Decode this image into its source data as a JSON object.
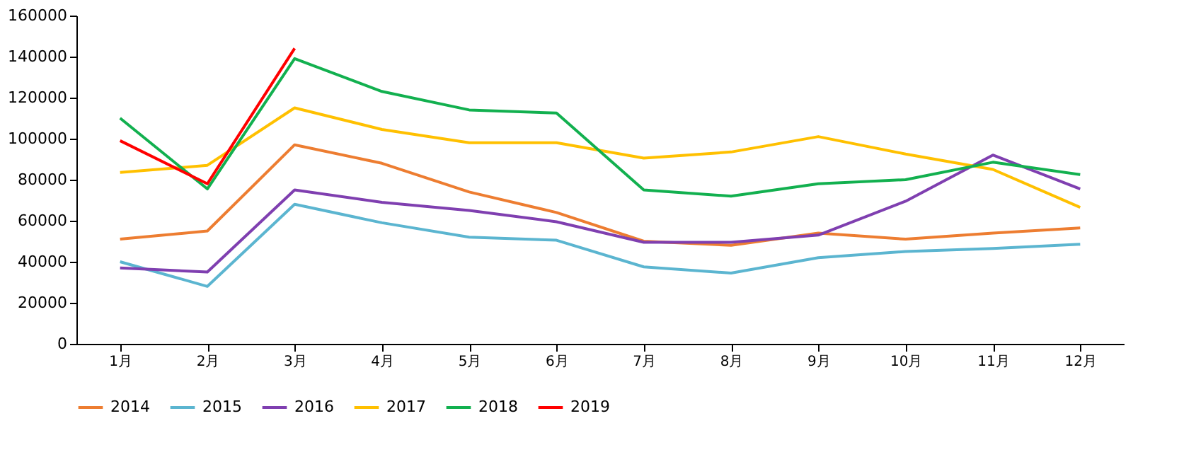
{
  "chart_data": {
    "type": "line",
    "categories": [
      "1月",
      "2月",
      "3月",
      "4月",
      "5月",
      "6月",
      "7月",
      "8月",
      "9月",
      "10月",
      "11月",
      "12月"
    ],
    "series": [
      {
        "name": "2014",
        "color": "#ed7d31",
        "values": [
          51000,
          55000,
          97000,
          88000,
          74000,
          64000,
          50000,
          48000,
          54000,
          51000,
          54000,
          56500
        ]
      },
      {
        "name": "2015",
        "color": "#5bb5d0",
        "values": [
          40000,
          28000,
          68000,
          59000,
          52000,
          50500,
          37500,
          34500,
          42000,
          45000,
          46500,
          48500
        ]
      },
      {
        "name": "2016",
        "color": "#7f3fb0",
        "values": [
          37000,
          35000,
          75000,
          69000,
          65000,
          59500,
          49500,
          49500,
          53000,
          69500,
          92000,
          75500
        ]
      },
      {
        "name": "2017",
        "color": "#ffc000",
        "values": [
          83500,
          87000,
          115000,
          104500,
          98000,
          98000,
          90500,
          93500,
          101000,
          92500,
          85000,
          66500
        ]
      },
      {
        "name": "2018",
        "color": "#12b04f",
        "values": [
          110000,
          75500,
          139000,
          123000,
          114000,
          112500,
          75000,
          72000,
          78000,
          80000,
          88500,
          82500
        ]
      },
      {
        "name": "2019",
        "color": "#ff0000",
        "values": [
          99000,
          78000,
          144000,
          null,
          null,
          null,
          null,
          null,
          null,
          null,
          null,
          null
        ]
      }
    ],
    "ylim": [
      0,
      160000
    ],
    "yticks": [
      0,
      20000,
      40000,
      60000,
      80000,
      100000,
      120000,
      140000,
      160000
    ],
    "grid": false,
    "legend": "bottom",
    "marker": "none",
    "line_style": "solid"
  }
}
